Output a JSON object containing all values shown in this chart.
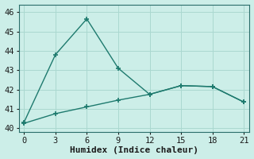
{
  "x": [
    0,
    3,
    6,
    9,
    12,
    15,
    18,
    21
  ],
  "y_line1": [
    40.3,
    43.8,
    45.65,
    43.1,
    41.75,
    42.2,
    42.15,
    41.35
  ],
  "y_line2": [
    40.25,
    40.75,
    41.1,
    41.45,
    41.75,
    42.2,
    42.15,
    41.35
  ],
  "line_color": "#1e7a6e",
  "bg_color": "#cceee8",
  "grid_color": "#aad8d0",
  "xlabel": "Humidex (Indice chaleur)",
  "xlim": [
    -0.5,
    21.5
  ],
  "ylim": [
    39.8,
    46.4
  ],
  "xticks": [
    0,
    3,
    6,
    9,
    12,
    15,
    18,
    21
  ],
  "yticks": [
    40,
    41,
    42,
    43,
    44,
    45,
    46
  ],
  "tick_fontsize": 7.5,
  "label_fontsize": 8
}
